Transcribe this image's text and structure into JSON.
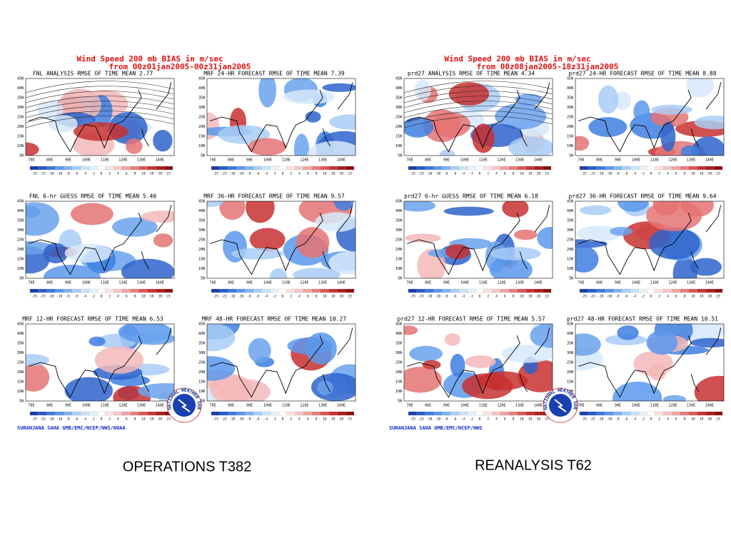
{
  "groups": [
    {
      "title": "Wind Speed 200 mb BIAS in m/sec",
      "subtitle": "from 00z01jan2005-00z31jan2005",
      "panels": [
        "FNL ANALYSIS RMSE OF TIME MEAN 2.77",
        "MRF 24-HR FORECAST RMSE OF TIME MEAN 7.39",
        "FNL 6-hr GUESS RMSE OF TIME MEAN 5.40",
        "MRF 36-HR FORECAST RMSE OF TIME MEAN 9.57",
        "MRF 12-HR FORECAST RMSE OF TIME MEAN 6.53",
        "MRF 48-HR FORECAST RMSE OF TIME MEAN 10.27"
      ],
      "credit": "SURANJANA SAHA GMB/EMC/NCEP/NWS/NOAA",
      "caption": "OPERATIONS T382"
    },
    {
      "title": "Wind Speed 200 mb BIAS in m/sec",
      "subtitle": "from 00z08jan2005-18z31jan2005",
      "panels": [
        "prd27 ANALYSIS RMSE OF TIME MEAN 4.34",
        "prd27 24-HR FORECAST RMSE OF TIME MEAN 8.88",
        "prd27 6-hr GUESS RMSE OF TIME MEAN 6.18",
        "prd27 36-HR FORECAST RMSE OF TIME MEAN 9.64",
        "prd27 12-HR FORECAST RMSE OF TIME MEAN 5.57",
        "prd27 48-HR FORECAST RMSE OF TIME MEAN 10.51"
      ],
      "credit": "SURANJANA SAHA GMB/EMC/NCEP/NWS",
      "caption": "REANALYSIS T62"
    }
  ],
  "lat_labels": [
    "45N",
    "40N",
    "35N",
    "30N",
    "25N",
    "20N",
    "15N",
    "10N",
    "5N"
  ],
  "lon_labels": [
    "70E",
    "80E",
    "90E",
    "100E",
    "110E",
    "120E",
    "130E",
    "140E"
  ],
  "colorbar_labels": [
    "-25",
    "-23",
    "-18",
    "-10",
    "-8",
    "-6",
    "-4",
    "-2",
    "0",
    "2",
    "4",
    "6",
    "8",
    "10",
    "18",
    "20",
    "23"
  ],
  "logo_text": "NATIONAL WEATHER SERVICE"
}
